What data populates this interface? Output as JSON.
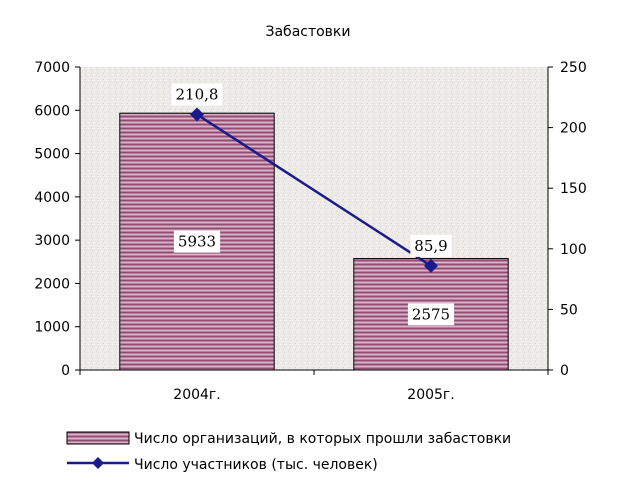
{
  "chart_data": {
    "type": "bar",
    "title": "Забастовки",
    "categories": [
      "2004г.",
      "2005г."
    ],
    "y_left": {
      "min": 0,
      "max": 7000,
      "step": 1000
    },
    "y_right": {
      "min": 0,
      "max": 250,
      "step": 50
    },
    "grid": false,
    "legend_position": "bottom",
    "series": [
      {
        "name": "Число организаций, в которых прошли забастовки",
        "kind": "bar",
        "axis": "left",
        "values": [
          5933,
          2575
        ],
        "labels": [
          "5933",
          "2575"
        ],
        "color": "#b0809a"
      },
      {
        "name": "Число участников (тыс. человек)",
        "kind": "line",
        "axis": "right",
        "values": [
          210.8,
          85.9
        ],
        "labels": [
          "210,8",
          "85,9"
        ],
        "color": "#1a1a8c"
      }
    ],
    "left_ticks": [
      "0",
      "1000",
      "2000",
      "3000",
      "4000",
      "5000",
      "6000",
      "7000"
    ],
    "right_ticks": [
      "0",
      "50",
      "100",
      "150",
      "200",
      "250"
    ]
  }
}
